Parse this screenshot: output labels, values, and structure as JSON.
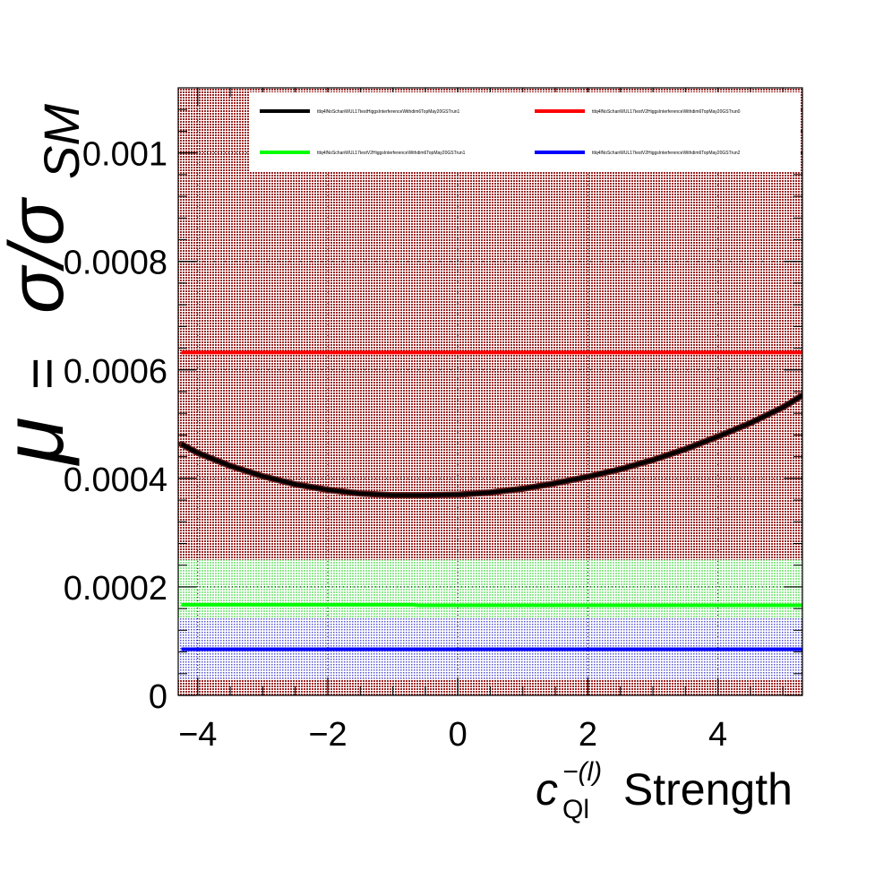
{
  "chart_data": {
    "type": "line",
    "title": "",
    "xlabel": {
      "symbol": "c",
      "superscript": "−(l)",
      "subscript": "Ql",
      "text": " Strength"
    },
    "ylabel": {
      "mu": "μ",
      "equals": "=",
      "sigma": "σ/σ",
      "subscript": "SM"
    },
    "xlim": [
      -4.3,
      5.3
    ],
    "ylim": [
      0,
      0.00112
    ],
    "xticks": [
      -4,
      -2,
      0,
      2,
      4
    ],
    "xtick_labels": [
      "−4",
      "−2",
      "0",
      "2",
      "4"
    ],
    "yticks": [
      0,
      0.0002,
      0.0004,
      0.0006,
      0.0008,
      0.001
    ],
    "ytick_labels": [
      "0",
      "0.0002",
      "0.0004",
      "0.0006",
      "0.0008",
      "0.001"
    ],
    "grid": true,
    "legend_position": "top",
    "series": [
      {
        "name": "ttlq4lNoSchanWUL17testHiggsInterferenceWithdim6TopMay20GSTrun1",
        "color": "#000000",
        "band_color": "#8b0000",
        "x": [
          -4.25,
          -4.0,
          -3.5,
          -3.0,
          -2.5,
          -2.0,
          -1.5,
          -1.0,
          -0.5,
          0.0,
          0.5,
          1.0,
          1.5,
          2.0,
          2.5,
          3.0,
          3.5,
          4.0,
          4.5,
          5.0,
          5.3
        ],
        "values": [
          0.000463,
          0.000447,
          0.000423,
          0.000404,
          0.000389,
          0.000379,
          0.000372,
          0.000369,
          0.000369,
          0.00037,
          0.000374,
          0.000381,
          0.000391,
          0.000403,
          0.000417,
          0.000434,
          0.000454,
          0.000477,
          0.000502,
          0.000531,
          0.000553
        ],
        "band": [
          0.0,
          0.00112
        ]
      },
      {
        "name": "ttlq4lNoSchanWUL17testV2HiggsInterferenceWithdim6TopMay20GSTrun0",
        "color": "#ff0000",
        "x": [
          -4.25,
          5.3
        ],
        "values": [
          0.000632,
          0.000632
        ]
      },
      {
        "name": "ttlq4lNoSchanWUL17testV2HiggsInterferenceWithdim6TopMay20GSTrun1",
        "color": "#00ff00",
        "band_color": "#66ee66",
        "x": [
          -4.25,
          -0.7,
          -0.6,
          5.3
        ],
        "values": [
          0.000167,
          0.000167,
          0.000166,
          0.000166
        ],
        "band": [
          0.000138,
          0.00025
        ]
      },
      {
        "name": "ttlq4lNoSchanWUL17testV2HiggsInterferenceWithdim6TopMay20GSTrun2",
        "color": "#0000ff",
        "band_color": "#3333cc",
        "x": [
          -4.25,
          5.3
        ],
        "values": [
          8.5e-05,
          8.5e-05
        ],
        "band": [
          3e-05,
          0.000142
        ]
      }
    ]
  }
}
